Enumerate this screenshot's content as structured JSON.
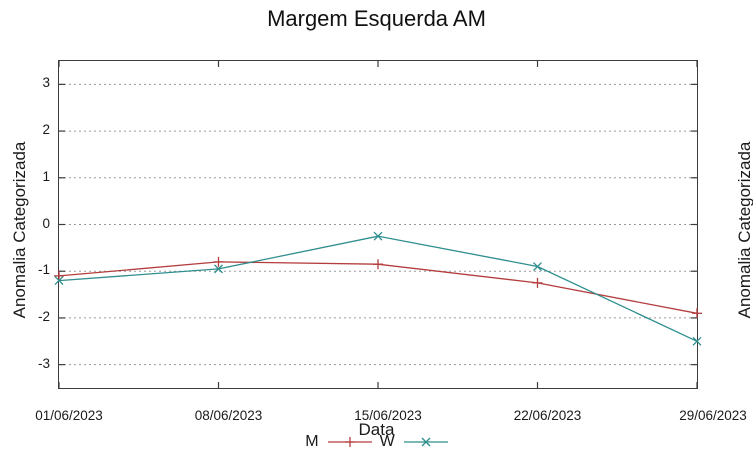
{
  "title": "Margem Esquerda AM",
  "chart_data": {
    "type": "line",
    "title": "Margem Esquerda AM",
    "xlabel": "Data",
    "ylabel": "Anomalia Categorizada",
    "x": [
      "01/06/2023",
      "08/06/2023",
      "15/06/2023",
      "22/06/2023",
      "29/06/2023"
    ],
    "series": [
      {
        "name": "M",
        "color": "#b43d3d",
        "marker": "plus",
        "values": [
          -1.1,
          -0.8,
          -0.85,
          -1.25,
          -1.9
        ]
      },
      {
        "name": "W",
        "color": "#2f8e8e",
        "marker": "cross",
        "values": [
          -1.2,
          -0.95,
          -0.25,
          -0.9,
          -2.5
        ]
      }
    ],
    "yticks": [
      3,
      2,
      1,
      0,
      -1,
      -2,
      -3
    ],
    "ylim": [
      -3.5,
      3.5
    ],
    "grid": "horizontal-dashed",
    "legend_position": "below-xlabel"
  },
  "right_axis": {
    "label": "Anomalia Categorizada"
  },
  "colors": {
    "grid": "#9a9a9a",
    "border": "#3c3c3c",
    "text": "#1a1a1a"
  }
}
